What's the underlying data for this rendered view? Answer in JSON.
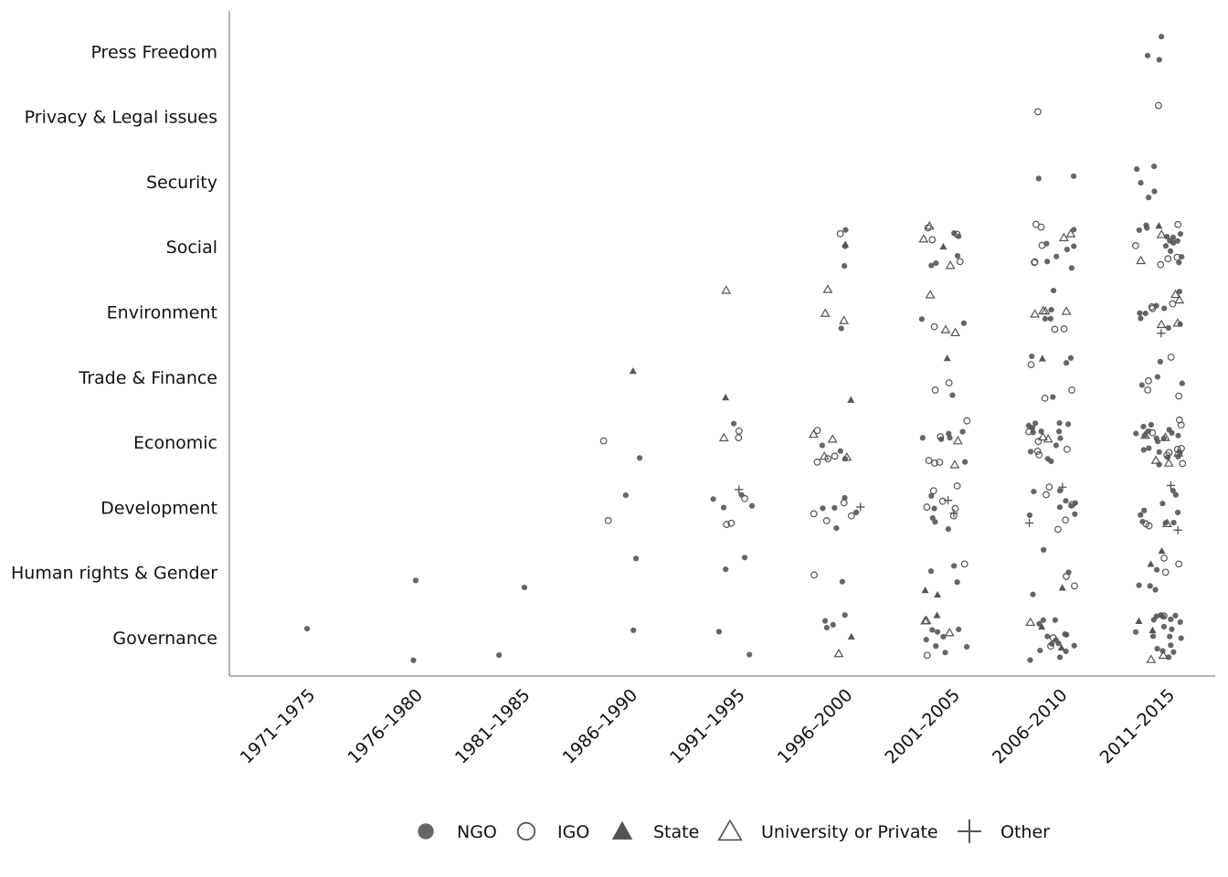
{
  "chart_data": {
    "type": "scatter",
    "title": "",
    "xlabel": "",
    "ylabel": "",
    "categories_x": [
      "1971–1975",
      "1976–1980",
      "1981–1985",
      "1986–1990",
      "1991–1995",
      "1996–2000",
      "2001–2005",
      "2006–2010",
      "2011–2015"
    ],
    "categories_y": [
      "Governance",
      "Human rights & Gender",
      "Development",
      "Economic",
      "Trade & Finance",
      "Environment",
      "Social",
      "Security",
      "Privacy & Legal issues",
      "Press Freedom"
    ],
    "grid": false,
    "legend_position": "bottom",
    "colors": {
      "marker": "#555555",
      "axis": "#888888"
    },
    "legend": [
      {
        "key": "NGO",
        "label": "NGO",
        "marker": "filled-circle"
      },
      {
        "key": "IGO",
        "label": "IGO",
        "marker": "open-circle"
      },
      {
        "key": "State",
        "label": "State",
        "marker": "filled-triangle"
      },
      {
        "key": "University",
        "label": "University or Private",
        "marker": "open-triangle"
      },
      {
        "key": "Other",
        "label": "Other",
        "marker": "plus"
      }
    ],
    "counts": [
      {
        "x": "1971–1975",
        "y": "Governance",
        "NGO": 1
      },
      {
        "x": "1976–1980",
        "y": "Governance",
        "NGO": 1
      },
      {
        "x": "1976–1980",
        "y": "Human rights & Gender",
        "NGO": 1
      },
      {
        "x": "1981–1985",
        "y": "Governance",
        "NGO": 1
      },
      {
        "x": "1981–1985",
        "y": "Human rights & Gender",
        "NGO": 1
      },
      {
        "x": "1986–1990",
        "y": "Governance",
        "NGO": 1
      },
      {
        "x": "1986–1990",
        "y": "Human rights & Gender",
        "NGO": 1
      },
      {
        "x": "1986–1990",
        "y": "Development",
        "NGO": 1,
        "IGO": 1
      },
      {
        "x": "1986–1990",
        "y": "Economic",
        "NGO": 1,
        "IGO": 1
      },
      {
        "x": "1986–1990",
        "y": "Trade & Finance",
        "State": 1
      },
      {
        "x": "1991–1995",
        "y": "Governance",
        "NGO": 2
      },
      {
        "x": "1991–1995",
        "y": "Human rights & Gender",
        "NGO": 2
      },
      {
        "x": "1991–1995",
        "y": "Development",
        "NGO": 4,
        "IGO": 3,
        "Other": 1
      },
      {
        "x": "1991–1995",
        "y": "Economic",
        "NGO": 1,
        "IGO": 2,
        "University": 1
      },
      {
        "x": "1991–1995",
        "y": "Trade & Finance",
        "State": 1
      },
      {
        "x": "1991–1995",
        "y": "Environment",
        "University": 1
      },
      {
        "x": "1996–2000",
        "y": "Governance",
        "NGO": 4,
        "State": 1,
        "University": 1
      },
      {
        "x": "1996–2000",
        "y": "Human rights & Gender",
        "NGO": 1,
        "IGO": 1
      },
      {
        "x": "1996–2000",
        "y": "Development",
        "NGO": 5,
        "IGO": 4,
        "Other": 1
      },
      {
        "x": "1996–2000",
        "y": "Economic",
        "NGO": 3,
        "IGO": 4,
        "University": 4
      },
      {
        "x": "1996–2000",
        "y": "Trade & Finance",
        "State": 1
      },
      {
        "x": "1996–2000",
        "y": "Environment",
        "NGO": 1,
        "University": 3
      },
      {
        "x": "1996–2000",
        "y": "Social",
        "NGO": 3,
        "IGO": 1,
        "State": 1
      },
      {
        "x": "2001–2005",
        "y": "Governance",
        "NGO": 8,
        "IGO": 1,
        "State": 1,
        "University": 3
      },
      {
        "x": "2001–2005",
        "y": "Human rights & Gender",
        "NGO": 3,
        "IGO": 1,
        "State": 2
      },
      {
        "x": "2001–2005",
        "y": "Development",
        "NGO": 5,
        "IGO": 6,
        "Other": 2
      },
      {
        "x": "2001–2005",
        "y": "Economic",
        "NGO": 6,
        "IGO": 5,
        "University": 2
      },
      {
        "x": "2001–2005",
        "y": "Trade & Finance",
        "NGO": 1,
        "IGO": 2,
        "State": 1
      },
      {
        "x": "2001–2005",
        "y": "Environment",
        "NGO": 2,
        "IGO": 1,
        "University": 3
      },
      {
        "x": "2001–2005",
        "y": "Social",
        "NGO": 5,
        "IGO": 4,
        "State": 1,
        "University": 3
      },
      {
        "x": "2006–2010",
        "y": "Governance",
        "NGO": 14,
        "IGO": 2,
        "State": 2,
        "University": 1
      },
      {
        "x": "2006–2010",
        "y": "Human rights & Gender",
        "NGO": 3,
        "IGO": 2,
        "State": 1
      },
      {
        "x": "2006–2010",
        "y": "Development",
        "NGO": 8,
        "IGO": 5,
        "Other": 2
      },
      {
        "x": "2006–2010",
        "y": "Economic",
        "NGO": 13,
        "IGO": 5,
        "University": 2
      },
      {
        "x": "2006–2010",
        "y": "Trade & Finance",
        "NGO": 4,
        "IGO": 3,
        "State": 1
      },
      {
        "x": "2006–2010",
        "y": "Environment",
        "NGO": 4,
        "IGO": 2,
        "University": 4
      },
      {
        "x": "2006–2010",
        "y": "Social",
        "NGO": 7,
        "IGO": 5,
        "University": 2
      },
      {
        "x": "2006–2010",
        "y": "Security",
        "NGO": 2
      },
      {
        "x": "2006–2010",
        "y": "Privacy & Legal issues",
        "IGO": 1
      },
      {
        "x": "2011–2015",
        "y": "Governance",
        "NGO": 18,
        "IGO": 1,
        "State": 2,
        "University": 2
      },
      {
        "x": "2011–2015",
        "y": "Human rights & Gender",
        "NGO": 4,
        "IGO": 3,
        "State": 2
      },
      {
        "x": "2011–2015",
        "y": "Development",
        "NGO": 9,
        "IGO": 2,
        "University": 1,
        "Other": 2
      },
      {
        "x": "2011–2015",
        "y": "Economic",
        "NGO": 18,
        "IGO": 8,
        "University": 5
      },
      {
        "x": "2011–2015",
        "y": "Trade & Finance",
        "NGO": 4,
        "IGO": 4
      },
      {
        "x": "2011–2015",
        "y": "Environment",
        "NGO": 8,
        "IGO": 3,
        "University": 4,
        "Other": 1
      },
      {
        "x": "2011–2015",
        "y": "Social",
        "NGO": 13,
        "IGO": 5,
        "State": 1,
        "University": 2
      },
      {
        "x": "2011–2015",
        "y": "Security",
        "NGO": 5
      },
      {
        "x": "2011–2015",
        "y": "Privacy & Legal issues",
        "IGO": 1
      },
      {
        "x": "2011–2015",
        "y": "Press Freedom",
        "NGO": 3
      }
    ]
  }
}
